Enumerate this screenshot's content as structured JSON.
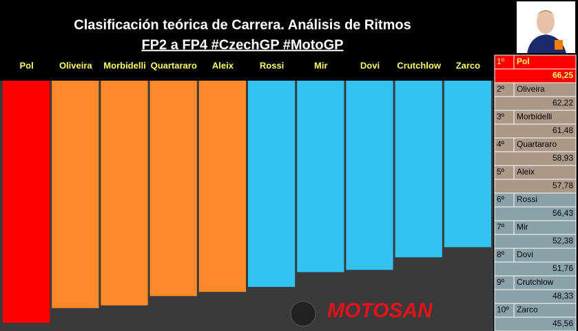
{
  "chart_data": {
    "type": "bar",
    "title": "Clasificación teórica de Carrera. Análisis de Ritmos",
    "subtitle": "FP2 a FP4 #CzechGP #MotoGP",
    "categories": [
      "Pol",
      "Oliveira",
      "Morbidelli",
      "Quartararo",
      "Aleix",
      "Rossi",
      "Mir",
      "Dovi",
      "Crutchlow",
      "Zarco"
    ],
    "values": [
      66.25,
      62.22,
      61.48,
      58.93,
      57.78,
      56.43,
      52.38,
      51.76,
      48.33,
      45.56
    ],
    "value_labels": [
      "66,25",
      "62,22",
      "61,48",
      "58,93",
      "57,78",
      "56,43",
      "52,38",
      "51,76",
      "48,33",
      "45,56"
    ],
    "ranks": [
      "1º",
      "2º",
      "3º",
      "4º",
      "5º",
      "6º",
      "7º",
      "8º",
      "9º",
      "10º"
    ],
    "colors": [
      "#ff0000",
      "#ff8a2b",
      "#ff8a2b",
      "#ff8a2b",
      "#ff8a2b",
      "#33c3f2",
      "#33c3f2",
      "#33c3f2",
      "#33c3f2",
      "#33c3f2"
    ],
    "watermark": "MOTOSAN"
  }
}
